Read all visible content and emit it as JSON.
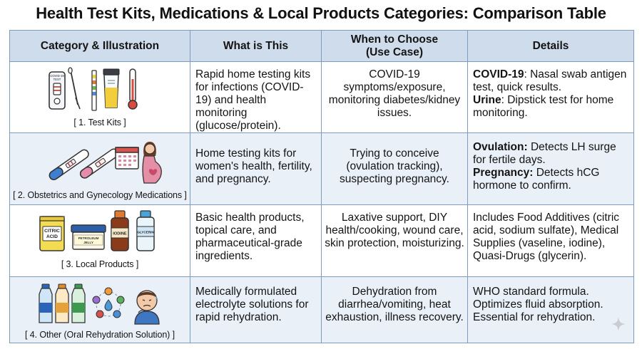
{
  "title": "Health Test Kits, Medications & Local Products Categories: Comparison Table",
  "headers": {
    "category": "Category & Illustration",
    "what": "What is This",
    "when_line1": "When to Choose",
    "when_line2": "(Use Case)",
    "details": "Details"
  },
  "rows": [
    {
      "caption": "[ 1. Test Kits ]",
      "what": "Rapid home testing kits for infections (COVID-19) and health monitoring (glucose/protein).",
      "when": "COVID-19 symptoms/exposure, monitoring diabetes/kidney issues.",
      "details": [
        {
          "label": "COVID-19",
          "text": ": Nasal swab antigen test, quick results."
        },
        {
          "label": "Urine",
          "text": ": Dipstick test for home monitoring."
        }
      ],
      "labels": [
        "COVID-19 TEST"
      ]
    },
    {
      "caption": "[ 2. Obstetrics and Gynecology Medications ]",
      "what": "Home testing kits for women's health, fertility, and pregnancy.",
      "when": "Trying to conceive (ovulation tracking), suspecting pregnancy.",
      "details": [
        {
          "label": "Ovulation:",
          "text": " Detects LH surge for fertile days."
        },
        {
          "label": "Pregnancy:",
          "text": " Detects hCG hormone to confirm."
        }
      ]
    },
    {
      "caption": "[ 3. Local Products ]",
      "what": "Basic health products, topical care, and pharmaceutical-grade ingredients.",
      "when": "Laxative support, DIY health/cooking, wound care, skin protection, moisturizing.",
      "details_text": "Includes Food Additives (citric acid, sodium sulfate), Medical Supplies (vaseline, iodine), Quasi-Drugs (glycerin).",
      "labels": [
        "CITRIC",
        "ACID",
        "PETROLEUM",
        "JELLY",
        "IODINE",
        "GLYCERIN"
      ]
    },
    {
      "caption": "[ 4. Other (Oral Rehydration Solution) ]",
      "what": "Medically formulated electrolyte solutions for rapid rehydration.",
      "when": "Dehydration from diarrhea/vomiting, heat exhaustion, illness recovery.",
      "details_text": "WHO standard formula. Optimizes fluid absorption. Essential for rehydration."
    }
  ],
  "colors": {
    "header_bg": "#cfdcec",
    "band_bg": "#e9f0f8",
    "border": "#7d9cc0"
  },
  "icons": [
    "covid-test-cassette-icon",
    "swab-icon",
    "urine-dipstick-icon",
    "specimen-cup-icon",
    "thermometer-icon",
    "ovulation-test-icon",
    "pregnancy-test-icon",
    "calendar-icon",
    "pregnant-woman-icon",
    "citric-acid-bag-icon",
    "petroleum-jelly-tub-icon",
    "iodine-bottle-icon",
    "glycerin-bottle-icon",
    "ors-bottle-icon",
    "electrolyte-cycle-icon",
    "dehydrated-person-icon",
    "sparkle-icon"
  ]
}
